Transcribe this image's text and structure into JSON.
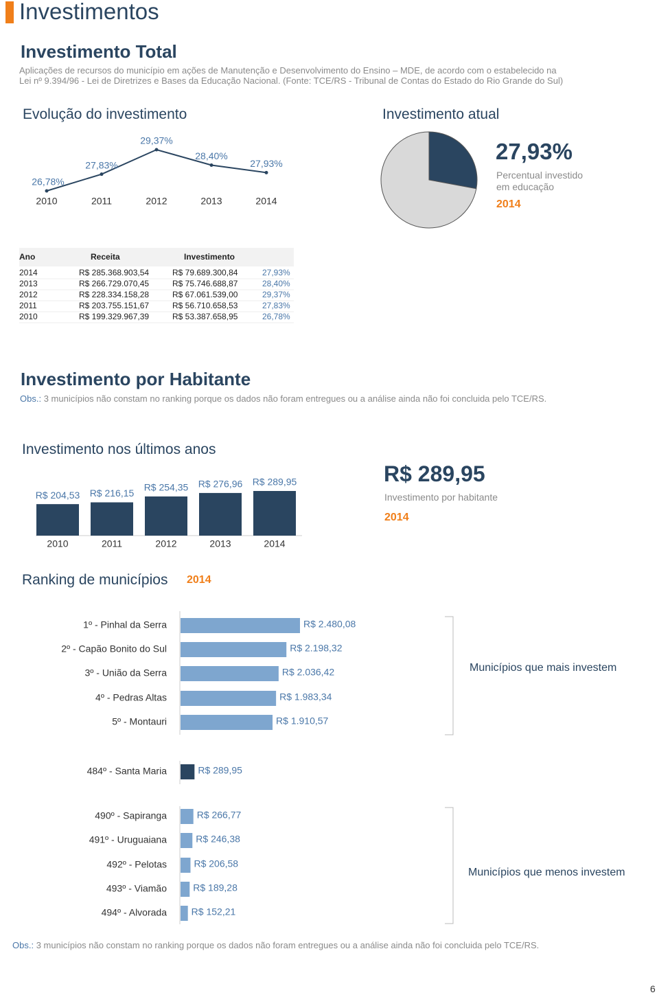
{
  "header": {
    "title": "Investimentos"
  },
  "section_total": {
    "title": "Investimento Total",
    "description": "Aplicações de recursos do município em ações de Manutenção e Desenvolvimento do Ensino – MDE, de acordo com o estabelecido na Lei nº 9.394/96 - Lei de Diretrizes e Bases da Educação Nacional. (Fonte: TCE/RS - Tribunal de Contas do Estado do Rio Grande do Sul)"
  },
  "chart_data": [
    {
      "type": "line",
      "title": "Evolução do investimento",
      "categories": [
        "2010",
        "2011",
        "2012",
        "2013",
        "2014"
      ],
      "values": [
        26.78,
        27.83,
        29.37,
        28.4,
        27.93
      ],
      "value_labels": [
        "26,78%",
        "27,83%",
        "29,37%",
        "28,40%",
        "27,93%"
      ],
      "color": "#2a4560",
      "label_color": "#4a77a8"
    },
    {
      "type": "pie",
      "title": "Investimento atual",
      "values": [
        27.93,
        72.07
      ],
      "value_labels": [
        "27,93%",
        null
      ],
      "colors": [
        "#2a4560",
        "#d9d9d9"
      ],
      "caption": "Percentual investido em educação",
      "year": "2014"
    },
    {
      "type": "bar",
      "title": "Investimento nos últimos anos",
      "categories": [
        "2010",
        "2011",
        "2012",
        "2013",
        "2014"
      ],
      "values": [
        204.53,
        216.15,
        254.35,
        276.96,
        289.95
      ],
      "value_labels": [
        "R$ 204,53",
        "R$ 216,15",
        "R$ 254,35",
        "R$ 276,96",
        "R$ 289,95"
      ],
      "color": "#2a4560",
      "caption": "Investimento por habitante",
      "year": "2014"
    },
    {
      "type": "hbar",
      "title": "Ranking de municípios",
      "year": "2014",
      "categories": [
        "1º - Pinhal da Serra",
        "2º - Capão Bonito do Sul",
        "3º - União da Serra",
        "4º - Pedras Altas",
        "5º - Montauri",
        "484º - Santa Maria",
        "490º - Sapiranga",
        "491º - Uruguaiana",
        "492º - Pelotas",
        "493º - Viamão",
        "494º - Alvorada"
      ],
      "values": [
        2480.08,
        2198.32,
        2036.42,
        1983.34,
        1910.57,
        289.95,
        266.77,
        246.38,
        206.58,
        189.28,
        152.21
      ],
      "value_labels": [
        "R$ 2.480,08",
        "R$ 2.198,32",
        "R$ 2.036,42",
        "R$ 1.983,34",
        "R$ 1.910,57",
        "R$ 289,95",
        "R$ 266,77",
        "R$ 246,38",
        "R$ 206,58",
        "R$ 189,28",
        "R$ 152,21"
      ],
      "colors": [
        "#7ea6cf",
        "#7ea6cf",
        "#7ea6cf",
        "#7ea6cf",
        "#7ea6cf",
        "#2a4560",
        "#7ea6cf",
        "#7ea6cf",
        "#7ea6cf",
        "#7ea6cf",
        "#7ea6cf"
      ],
      "group_labels": [
        "Municípios que mais investem",
        "Municípios que menos investem"
      ]
    }
  ],
  "table": {
    "columns": [
      "Ano",
      "Receita",
      "Investimento"
    ],
    "rows": [
      [
        "2014",
        "R$ 285.368.903,54",
        "R$ 79.689.300,84",
        "27,93%"
      ],
      [
        "2013",
        "R$ 266.729.070,45",
        "R$ 75.746.688,87",
        "28,40%"
      ],
      [
        "2012",
        "R$ 228.334.158,28",
        "R$ 67.061.539,00",
        "29,37%"
      ],
      [
        "2011",
        "R$ 203.755.151,67",
        "R$ 56.710.658,53",
        "27,83%"
      ],
      [
        "2010",
        "R$ 199.329.967,39",
        "R$ 53.387.658,95",
        "26,78%"
      ]
    ]
  },
  "section_habitante": {
    "title": "Investimento por Habitante",
    "obs_label": "Obs.:",
    "obs_text": "3 municípios não constam no ranking porque os dados não foram entregues ou a análise ainda não foi concluida pelo TCE/RS."
  },
  "page_number": "6"
}
